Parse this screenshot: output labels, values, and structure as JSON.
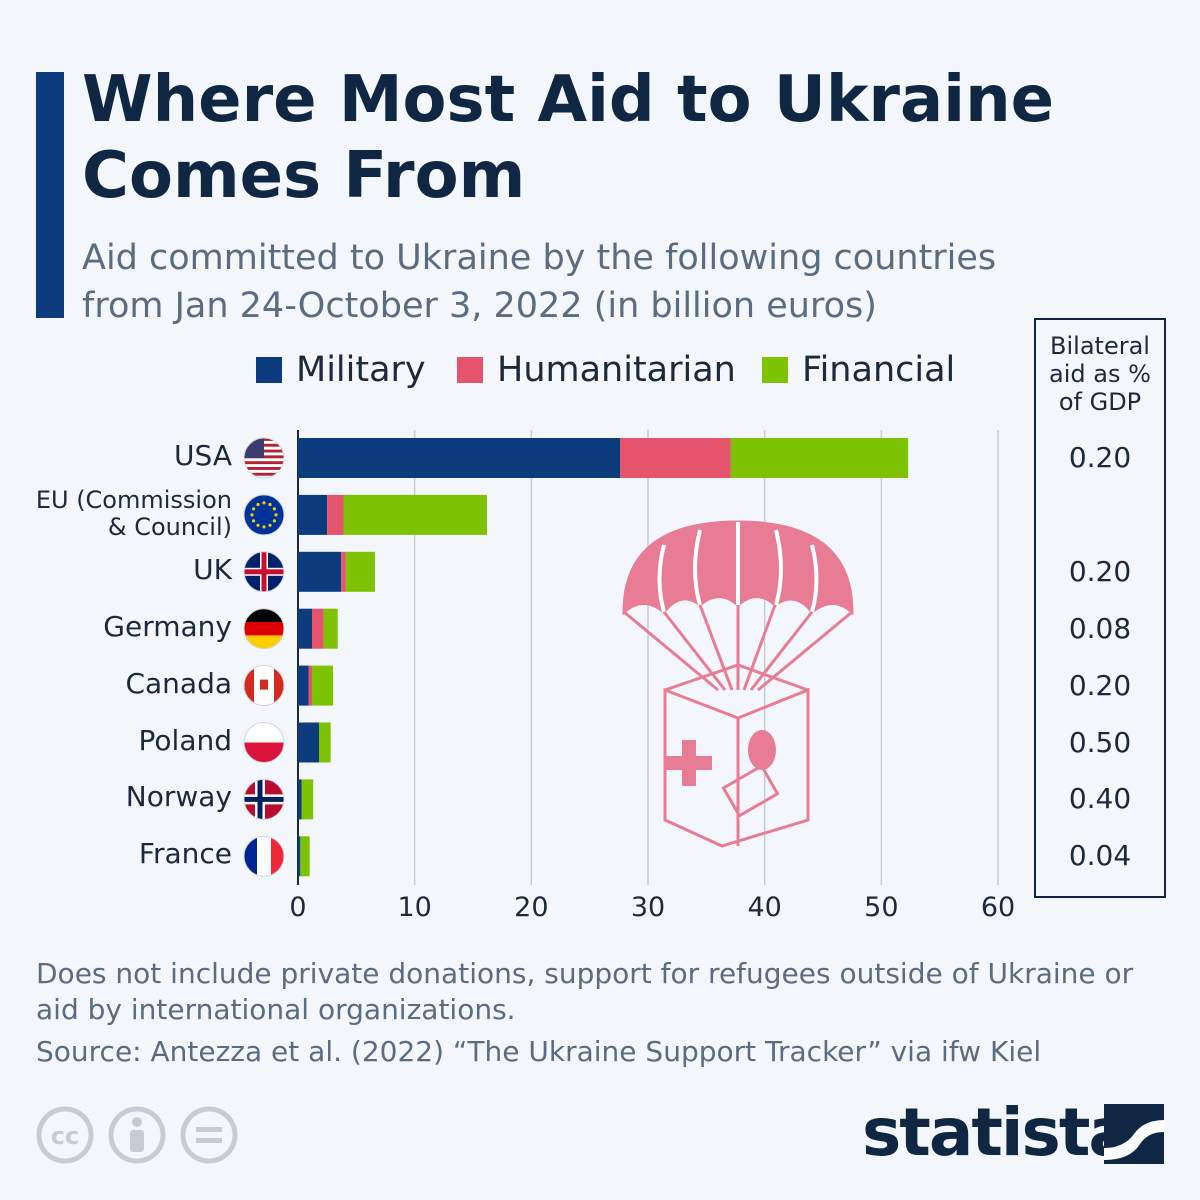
{
  "title": "Where Most Aid to Ukraine Comes From",
  "subtitle": "Aid committed to Ukraine by the following countries from Jan 24-October 3, 2022 (in billion euros)",
  "gdp_header": "Bilateral aid as % of GDP",
  "footnote": "Does not include private donations, support for refugees outside of Ukraine or aid by international organizations.",
  "source": "Source: Antezza et al. (2022) “The Ukraine Support Tracker” via ifw Kiel",
  "brand": "statista",
  "chart_data": {
    "type": "bar",
    "orientation": "horizontal",
    "stacked": true,
    "categories": [
      "USA",
      "EU (Commission & Council)",
      "UK",
      "Germany",
      "Canada",
      "Poland",
      "Norway",
      "France"
    ],
    "series": [
      {
        "name": "Military",
        "color": "#0c3c7e",
        "values": [
          27.6,
          2.5,
          3.7,
          1.2,
          0.9,
          1.8,
          0.3,
          0.2
        ]
      },
      {
        "name": "Humanitarian",
        "color": "#e4546c",
        "values": [
          9.5,
          1.4,
          0.4,
          1.0,
          0.3,
          0.0,
          0.0,
          0.0
        ]
      },
      {
        "name": "Financial",
        "color": "#7dc303",
        "values": [
          15.2,
          12.3,
          2.5,
          1.2,
          1.8,
          1.0,
          1.0,
          0.8
        ]
      }
    ],
    "gdp_share": [
      "0.20",
      "",
      "0.20",
      "0.08",
      "0.20",
      "0.50",
      "0.40",
      "0.04"
    ],
    "xlim": [
      0,
      60
    ],
    "xticks": [
      "0",
      "10",
      "20",
      "30",
      "40",
      "50",
      "60"
    ],
    "grid": true,
    "legend_position": "top"
  }
}
